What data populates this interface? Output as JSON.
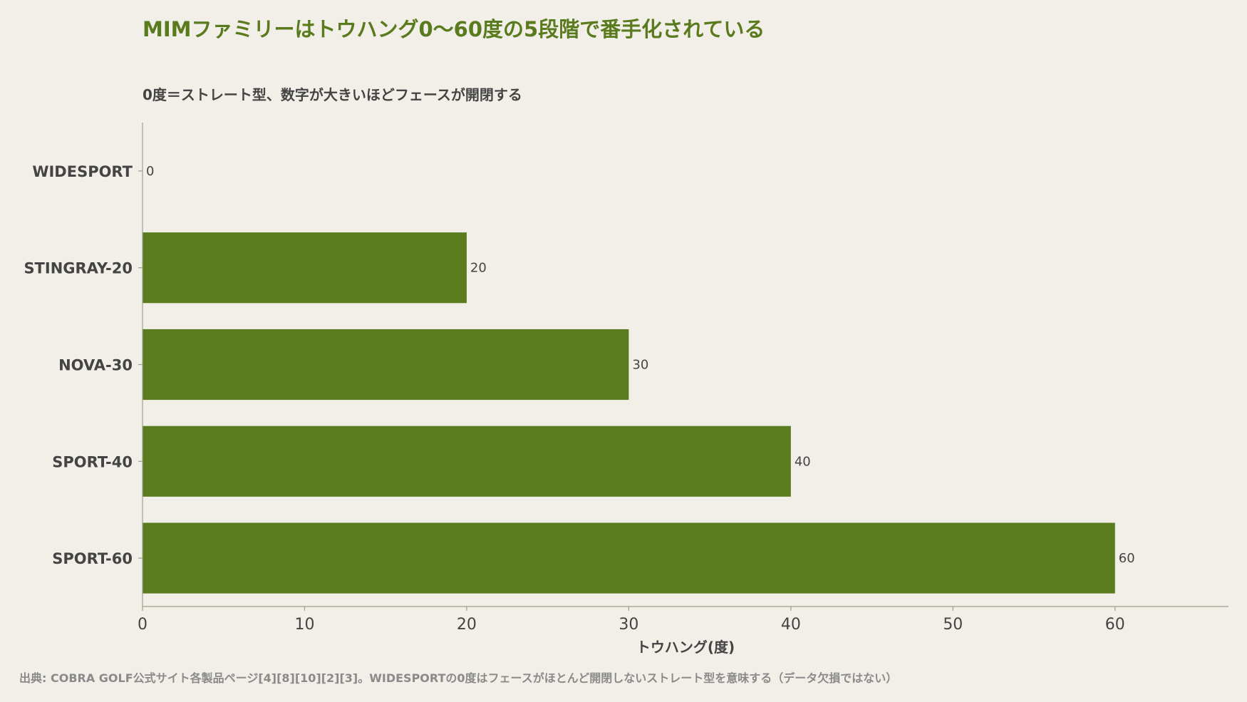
{
  "header": {
    "title": "MIMファミリーはトウハング0〜60度の5段階で番手化されている",
    "subtitle": "0度＝ストレート型、数字が大きいほどフェースが開閉する"
  },
  "footer": {
    "source": "出典: COBRA GOLF公式サイト各製品ページ[4][8][10][2][3]。WIDESPORTの0度はフェースがほとんど開閉しないストレート型を意味する（データ欠損ではない）"
  },
  "colors": {
    "bar": "#5b7b1f",
    "title": "#5a7a1e",
    "background": "#f2efe9"
  },
  "chart_data": {
    "type": "bar",
    "orientation": "horizontal",
    "categories": [
      "WIDESPORT",
      "STINGRAY-20",
      "NOVA-30",
      "SPORT-40",
      "SPORT-60"
    ],
    "values": [
      0,
      20,
      30,
      40,
      60
    ],
    "data_labels": [
      "0",
      "20",
      "30",
      "40",
      "60"
    ],
    "xlabel": "トウハング(度)",
    "ylabel": "",
    "xlim": [
      0,
      67
    ],
    "xticks": [
      0,
      10,
      20,
      30,
      40,
      50,
      60
    ],
    "grid": false,
    "legend": "none"
  }
}
